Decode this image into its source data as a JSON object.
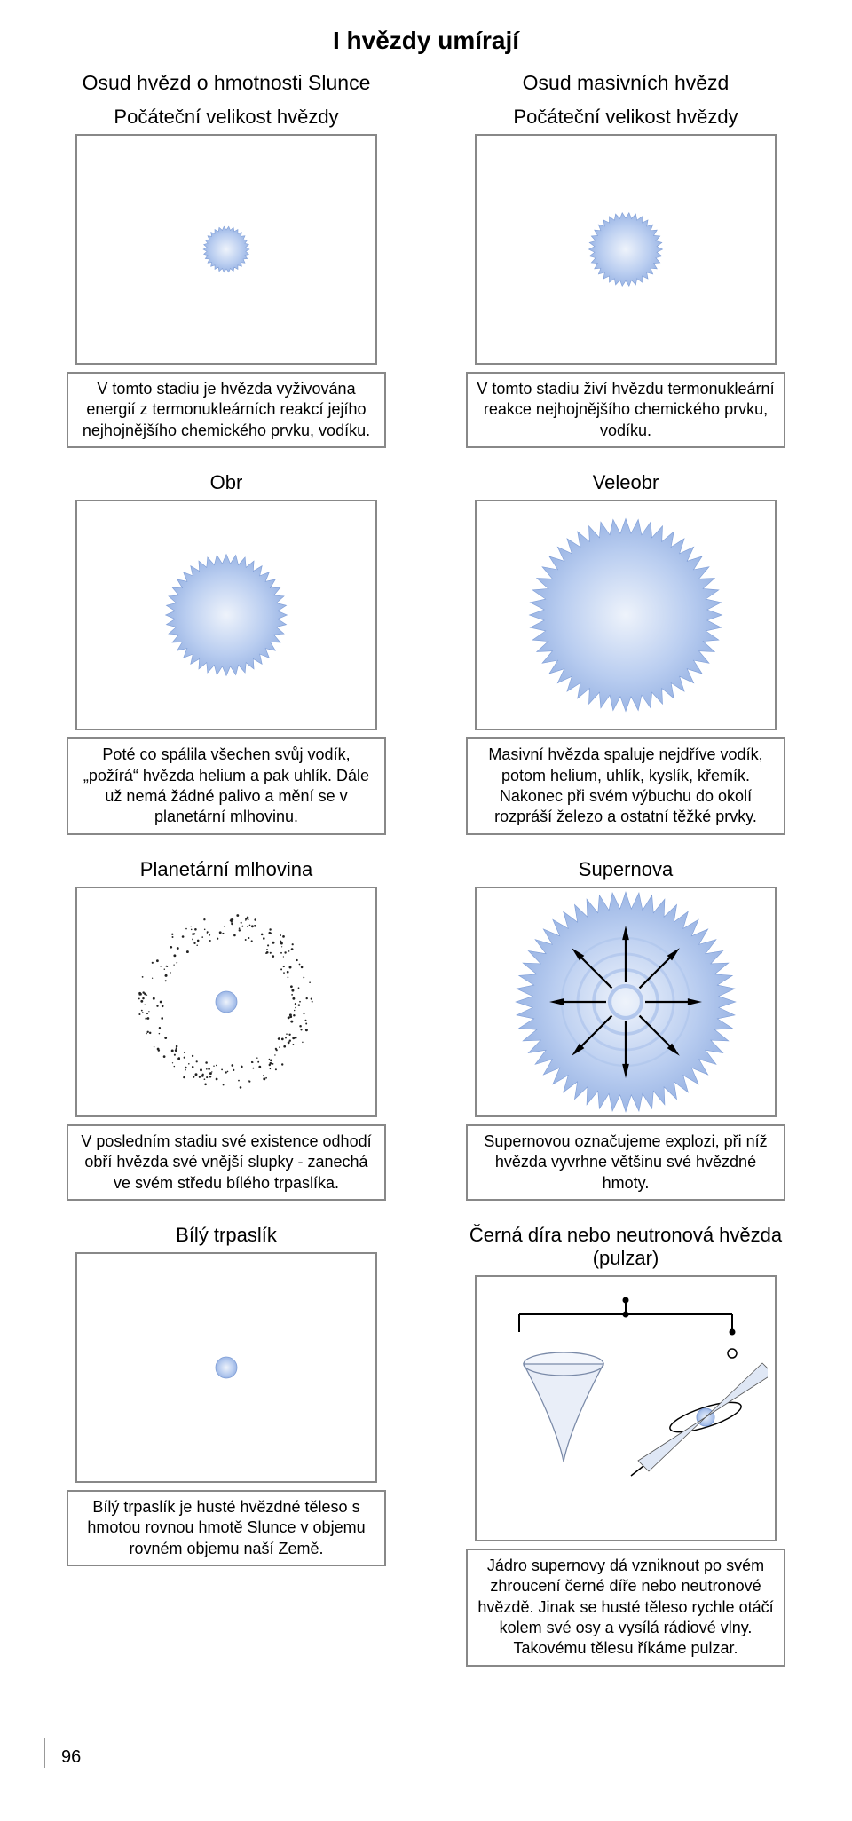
{
  "page": {
    "title": "I hvězdy umírají",
    "page_number": "96",
    "colors": {
      "star_fill": "#b9cdf0",
      "star_stroke": "#7e9dd6",
      "bg": "#ffffff",
      "border": "#888888",
      "text": "#000000",
      "dot": "#222222"
    }
  },
  "left": {
    "column_title": "Osud hvězd o hmotnosti Slunce",
    "stages": [
      {
        "label": "Počáteční velikost hvězdy",
        "caption": "V tomto stadiu je hvězda vyživována energií z termonukleárních reakcí jejího nejhojnějšího chemického prvku, vodíku."
      },
      {
        "label": "Obr",
        "caption": "Poté co spálila všechen svůj vodík, „požírá“ hvězda helium a pak uhlík. Dále už nemá žádné palivo a mění se v planetární mlhovinu."
      },
      {
        "label": "Planetární mlhovina",
        "caption": "V posledním stadiu své existence odhodí obří hvězda své vnější slupky -  zanechá ve svém středu bílého trpaslíka."
      },
      {
        "label": "Bílý trpaslík",
        "caption": "Bílý trpaslík je husté hvězdné těleso s hmotou rovnou hmotě Slunce v objemu rovném objemu naší Země."
      }
    ]
  },
  "right": {
    "column_title": "Osud masivních hvězd",
    "stages": [
      {
        "label": "Počáteční velikost hvězdy",
        "caption": "V tomto stadiu živí hvězdu termonukleární reakce nejhojnějšího chemického prvku, vodíku."
      },
      {
        "label": "Veleobr",
        "caption": "Masivní hvězda spaluje nejdříve vodík, potom helium, uhlík, kyslík, křemík. Nakonec při svém výbuchu do okolí rozpráší železo a ostatní těžké prvky."
      },
      {
        "label": "Supernova",
        "caption": "Supernovou označujeme explozi, při níž hvězda vyvrhne většinu své hvězdné hmoty."
      },
      {
        "label": "Černá díra nebo neutronová hvězda (pulzar)",
        "caption": "Jádro supernovy dá vzniknout po svém zhroucení černé díře nebo neutronové hvězdě. Jinak se husté těleso rychle otáčí kolem své osy a vysílá rádiové vlny. Takovému tělesu říkáme pulzar."
      }
    ]
  },
  "graphics": {
    "small_star_radius": 22,
    "giant_radius": 58,
    "supergiant_radius": 92,
    "dwarf_radius": 12,
    "planetary_ring_r": 85,
    "planetary_ring_dots": 240,
    "supernova_radius": 105,
    "supernova_arrows": 8
  }
}
